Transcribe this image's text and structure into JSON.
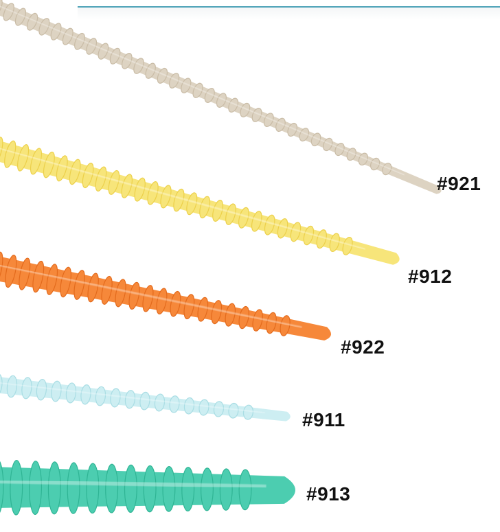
{
  "items": [
    {
      "label": "#921",
      "color": "#ddd3c2",
      "shade": "#c9bca6"
    },
    {
      "label": "#912",
      "color": "#f7e57a",
      "shade": "#ecd04a"
    },
    {
      "label": "#922",
      "color": "#f6883a",
      "shade": "#e36a1c"
    },
    {
      "label": "#911",
      "color": "#cdeef2",
      "shade": "#a9dde4"
    },
    {
      "label": "#913",
      "color": "#4ccdb0",
      "shade": "#2fb494"
    }
  ]
}
